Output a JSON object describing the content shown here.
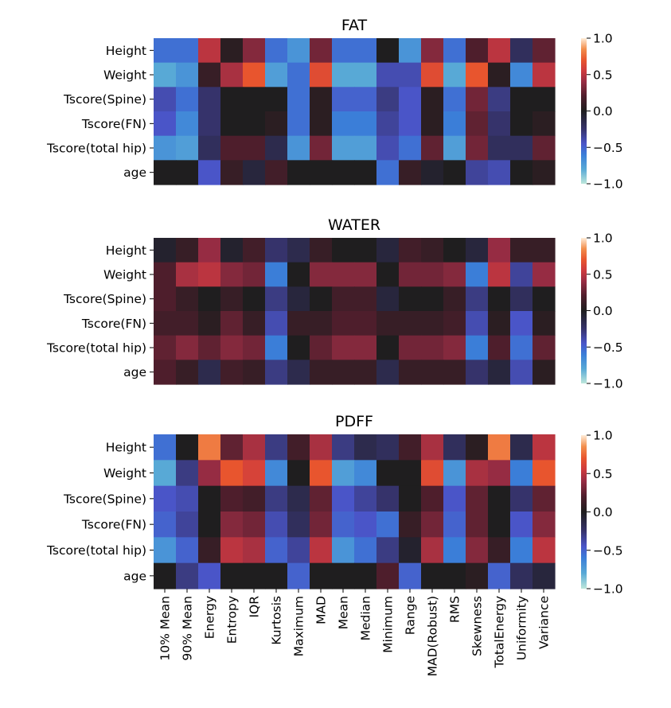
{
  "chart_data": [
    {
      "type": "heatmap",
      "title": "FAT",
      "rows": [
        "Height",
        "Weight",
        "Tscore(Spine)",
        "Tscore(FN)",
        "Tscore(total hip)",
        "age"
      ],
      "columns": [
        "10% Mean",
        "90% Mean",
        "Energy",
        "Entropy",
        "IQR",
        "Kurtosis",
        "Maximum",
        "MAD",
        "Mean",
        "Median",
        "Minimum",
        "Range",
        "MAD(Robust)",
        "RMS",
        "Skewness",
        "TotalEnergy",
        "Uniformity",
        "Variance"
      ],
      "values": [
        [
          -0.55,
          -0.55,
          0.5,
          0.05,
          0.35,
          -0.55,
          -0.7,
          0.3,
          -0.55,
          -0.55,
          0.0,
          -0.7,
          0.35,
          -0.55,
          0.2,
          0.5,
          -0.2,
          0.25
        ],
        [
          -0.8,
          -0.7,
          0.1,
          0.45,
          0.7,
          -0.75,
          -0.55,
          0.65,
          -0.8,
          -0.8,
          -0.4,
          -0.4,
          0.65,
          -0.8,
          0.7,
          0.05,
          -0.65,
          0.5
        ],
        [
          -0.4,
          -0.55,
          -0.25,
          0.0,
          0.0,
          0.0,
          -0.55,
          0.05,
          -0.5,
          -0.5,
          -0.3,
          -0.45,
          0.05,
          -0.55,
          0.3,
          -0.3,
          0.0,
          0.0
        ],
        [
          -0.45,
          -0.65,
          -0.25,
          0.0,
          0.0,
          0.05,
          -0.55,
          0.05,
          -0.6,
          -0.6,
          -0.35,
          -0.45,
          0.05,
          -0.6,
          0.25,
          -0.25,
          0.0,
          0.05
        ],
        [
          -0.7,
          -0.75,
          -0.2,
          0.2,
          0.2,
          -0.15,
          -0.7,
          0.3,
          -0.75,
          -0.75,
          -0.4,
          -0.55,
          0.25,
          -0.75,
          0.3,
          -0.2,
          -0.2,
          0.25
        ],
        [
          0.0,
          0.0,
          -0.45,
          0.1,
          -0.1,
          0.15,
          0.0,
          0.0,
          0.0,
          0.0,
          -0.55,
          0.1,
          -0.05,
          0.0,
          -0.35,
          -0.4,
          0.0,
          0.05
        ]
      ],
      "vmin": -1.0,
      "vmax": 1.0,
      "colorbar_ticks": [
        "1.0",
        "0.5",
        "0.0",
        "−0.5",
        "−1.0"
      ],
      "colorbar_tick_values": [
        1.0,
        0.5,
        0.0,
        -0.5,
        -1.0
      ],
      "colormap": "icefire",
      "show_xticklabels": false
    },
    {
      "type": "heatmap",
      "title": "WATER",
      "rows": [
        "Height",
        "Weight",
        "Tscore(Spine)",
        "Tscore(FN)",
        "Tscore(total hip)",
        "age"
      ],
      "columns": [
        "10% Mean",
        "90% Mean",
        "Energy",
        "Entropy",
        "IQR",
        "Kurtosis",
        "Maximum",
        "MAD",
        "Mean",
        "Median",
        "Minimum",
        "Range",
        "MAD(Robust)",
        "RMS",
        "Skewness",
        "TotalEnergy",
        "Uniformity",
        "Variance"
      ],
      "values": [
        [
          -0.05,
          0.1,
          0.4,
          -0.05,
          0.15,
          -0.25,
          -0.15,
          0.1,
          0.0,
          0.0,
          -0.1,
          0.15,
          0.1,
          0.0,
          -0.1,
          0.4,
          0.1,
          0.1
        ],
        [
          0.2,
          0.45,
          0.5,
          0.35,
          0.3,
          -0.6,
          0.0,
          0.35,
          0.35,
          0.35,
          0.0,
          0.3,
          0.3,
          0.35,
          -0.6,
          0.5,
          -0.35,
          0.4
        ],
        [
          0.2,
          0.1,
          0.0,
          0.1,
          0.0,
          -0.3,
          -0.1,
          0.0,
          0.15,
          0.15,
          -0.1,
          0.0,
          0.0,
          0.1,
          -0.3,
          0.0,
          -0.2,
          0.0
        ],
        [
          0.15,
          0.15,
          0.05,
          0.25,
          0.1,
          -0.4,
          0.1,
          0.1,
          0.2,
          0.2,
          0.1,
          0.1,
          0.1,
          0.15,
          -0.4,
          0.05,
          -0.45,
          0.05
        ],
        [
          0.25,
          0.35,
          0.25,
          0.35,
          0.3,
          -0.6,
          0.0,
          0.25,
          0.35,
          0.35,
          0.0,
          0.3,
          0.3,
          0.35,
          -0.6,
          0.2,
          -0.55,
          0.25
        ],
        [
          0.2,
          0.1,
          -0.15,
          0.15,
          0.1,
          -0.3,
          -0.15,
          0.1,
          0.1,
          0.1,
          -0.15,
          0.1,
          0.1,
          0.1,
          -0.25,
          -0.1,
          -0.4,
          0.05
        ]
      ],
      "vmin": -1.0,
      "vmax": 1.0,
      "colorbar_ticks": [
        "1.0",
        "0.5",
        "0.0",
        "−0.5",
        "−1.0"
      ],
      "colorbar_tick_values": [
        1.0,
        0.5,
        0.0,
        -0.5,
        -1.0
      ],
      "colormap": "icefire",
      "show_xticklabels": false
    },
    {
      "type": "heatmap",
      "title": "PDFF",
      "rows": [
        "Height",
        "Weight",
        "Tscore(Spine)",
        "Tscore(FN)",
        "Tscore(total hip)",
        "age"
      ],
      "columns": [
        "10% Mean",
        "90% Mean",
        "Energy",
        "Entropy",
        "IQR",
        "Kurtosis",
        "Maximum",
        "MAD",
        "Mean",
        "Median",
        "Minimum",
        "Range",
        "MAD(Robust)",
        "RMS",
        "Skewness",
        "TotalEnergy",
        "Uniformity",
        "Variance"
      ],
      "values": [
        [
          -0.55,
          0.0,
          0.8,
          0.25,
          0.45,
          -0.3,
          0.15,
          0.45,
          -0.3,
          -0.15,
          -0.2,
          0.15,
          0.45,
          -0.2,
          0.05,
          0.8,
          -0.15,
          0.5
        ],
        [
          -0.8,
          -0.3,
          0.4,
          0.7,
          0.6,
          -0.65,
          0.0,
          0.7,
          -0.75,
          -0.65,
          0.0,
          0.0,
          0.65,
          -0.7,
          0.45,
          0.4,
          -0.6,
          0.7
        ],
        [
          -0.45,
          -0.4,
          0.0,
          0.2,
          0.15,
          -0.3,
          -0.15,
          0.25,
          -0.45,
          -0.35,
          -0.25,
          0.0,
          0.2,
          -0.45,
          0.25,
          0.0,
          -0.25,
          0.25
        ],
        [
          -0.5,
          -0.35,
          0.0,
          0.35,
          0.3,
          -0.4,
          -0.2,
          0.3,
          -0.5,
          -0.45,
          -0.55,
          0.1,
          0.3,
          -0.5,
          0.25,
          0.0,
          -0.45,
          0.35
        ],
        [
          -0.7,
          -0.5,
          0.1,
          0.5,
          0.45,
          -0.5,
          -0.35,
          0.5,
          -0.7,
          -0.55,
          -0.3,
          -0.05,
          0.45,
          -0.6,
          0.35,
          0.1,
          -0.6,
          0.5
        ],
        [
          0.0,
          -0.3,
          -0.45,
          0.0,
          0.0,
          0.0,
          -0.5,
          0.0,
          0.0,
          0.0,
          0.2,
          -0.5,
          0.0,
          0.0,
          0.05,
          -0.5,
          -0.2,
          -0.1
        ]
      ],
      "vmin": -1.0,
      "vmax": 1.0,
      "colorbar_ticks": [
        "1.0",
        "0.5",
        "0.0",
        "−0.5",
        "−1.0"
      ],
      "colorbar_tick_values": [
        1.0,
        0.5,
        0.0,
        -0.5,
        -1.0
      ],
      "colormap": "icefire",
      "show_xticklabels": true
    }
  ],
  "colormap_stops": [
    {
      "v": -1.0,
      "color": "#bde7db"
    },
    {
      "v": -0.8,
      "color": "#58a9d6"
    },
    {
      "v": -0.6,
      "color": "#3b7ed8"
    },
    {
      "v": -0.45,
      "color": "#4a55c8"
    },
    {
      "v": -0.25,
      "color": "#36336b"
    },
    {
      "v": 0.0,
      "color": "#1f1e1f"
    },
    {
      "v": 0.2,
      "color": "#4e1e2c"
    },
    {
      "v": 0.4,
      "color": "#962c43"
    },
    {
      "v": 0.55,
      "color": "#cd3a3e"
    },
    {
      "v": 0.7,
      "color": "#e8552e"
    },
    {
      "v": 0.85,
      "color": "#f28e4c"
    },
    {
      "v": 1.0,
      "color": "#ffecd8"
    }
  ]
}
